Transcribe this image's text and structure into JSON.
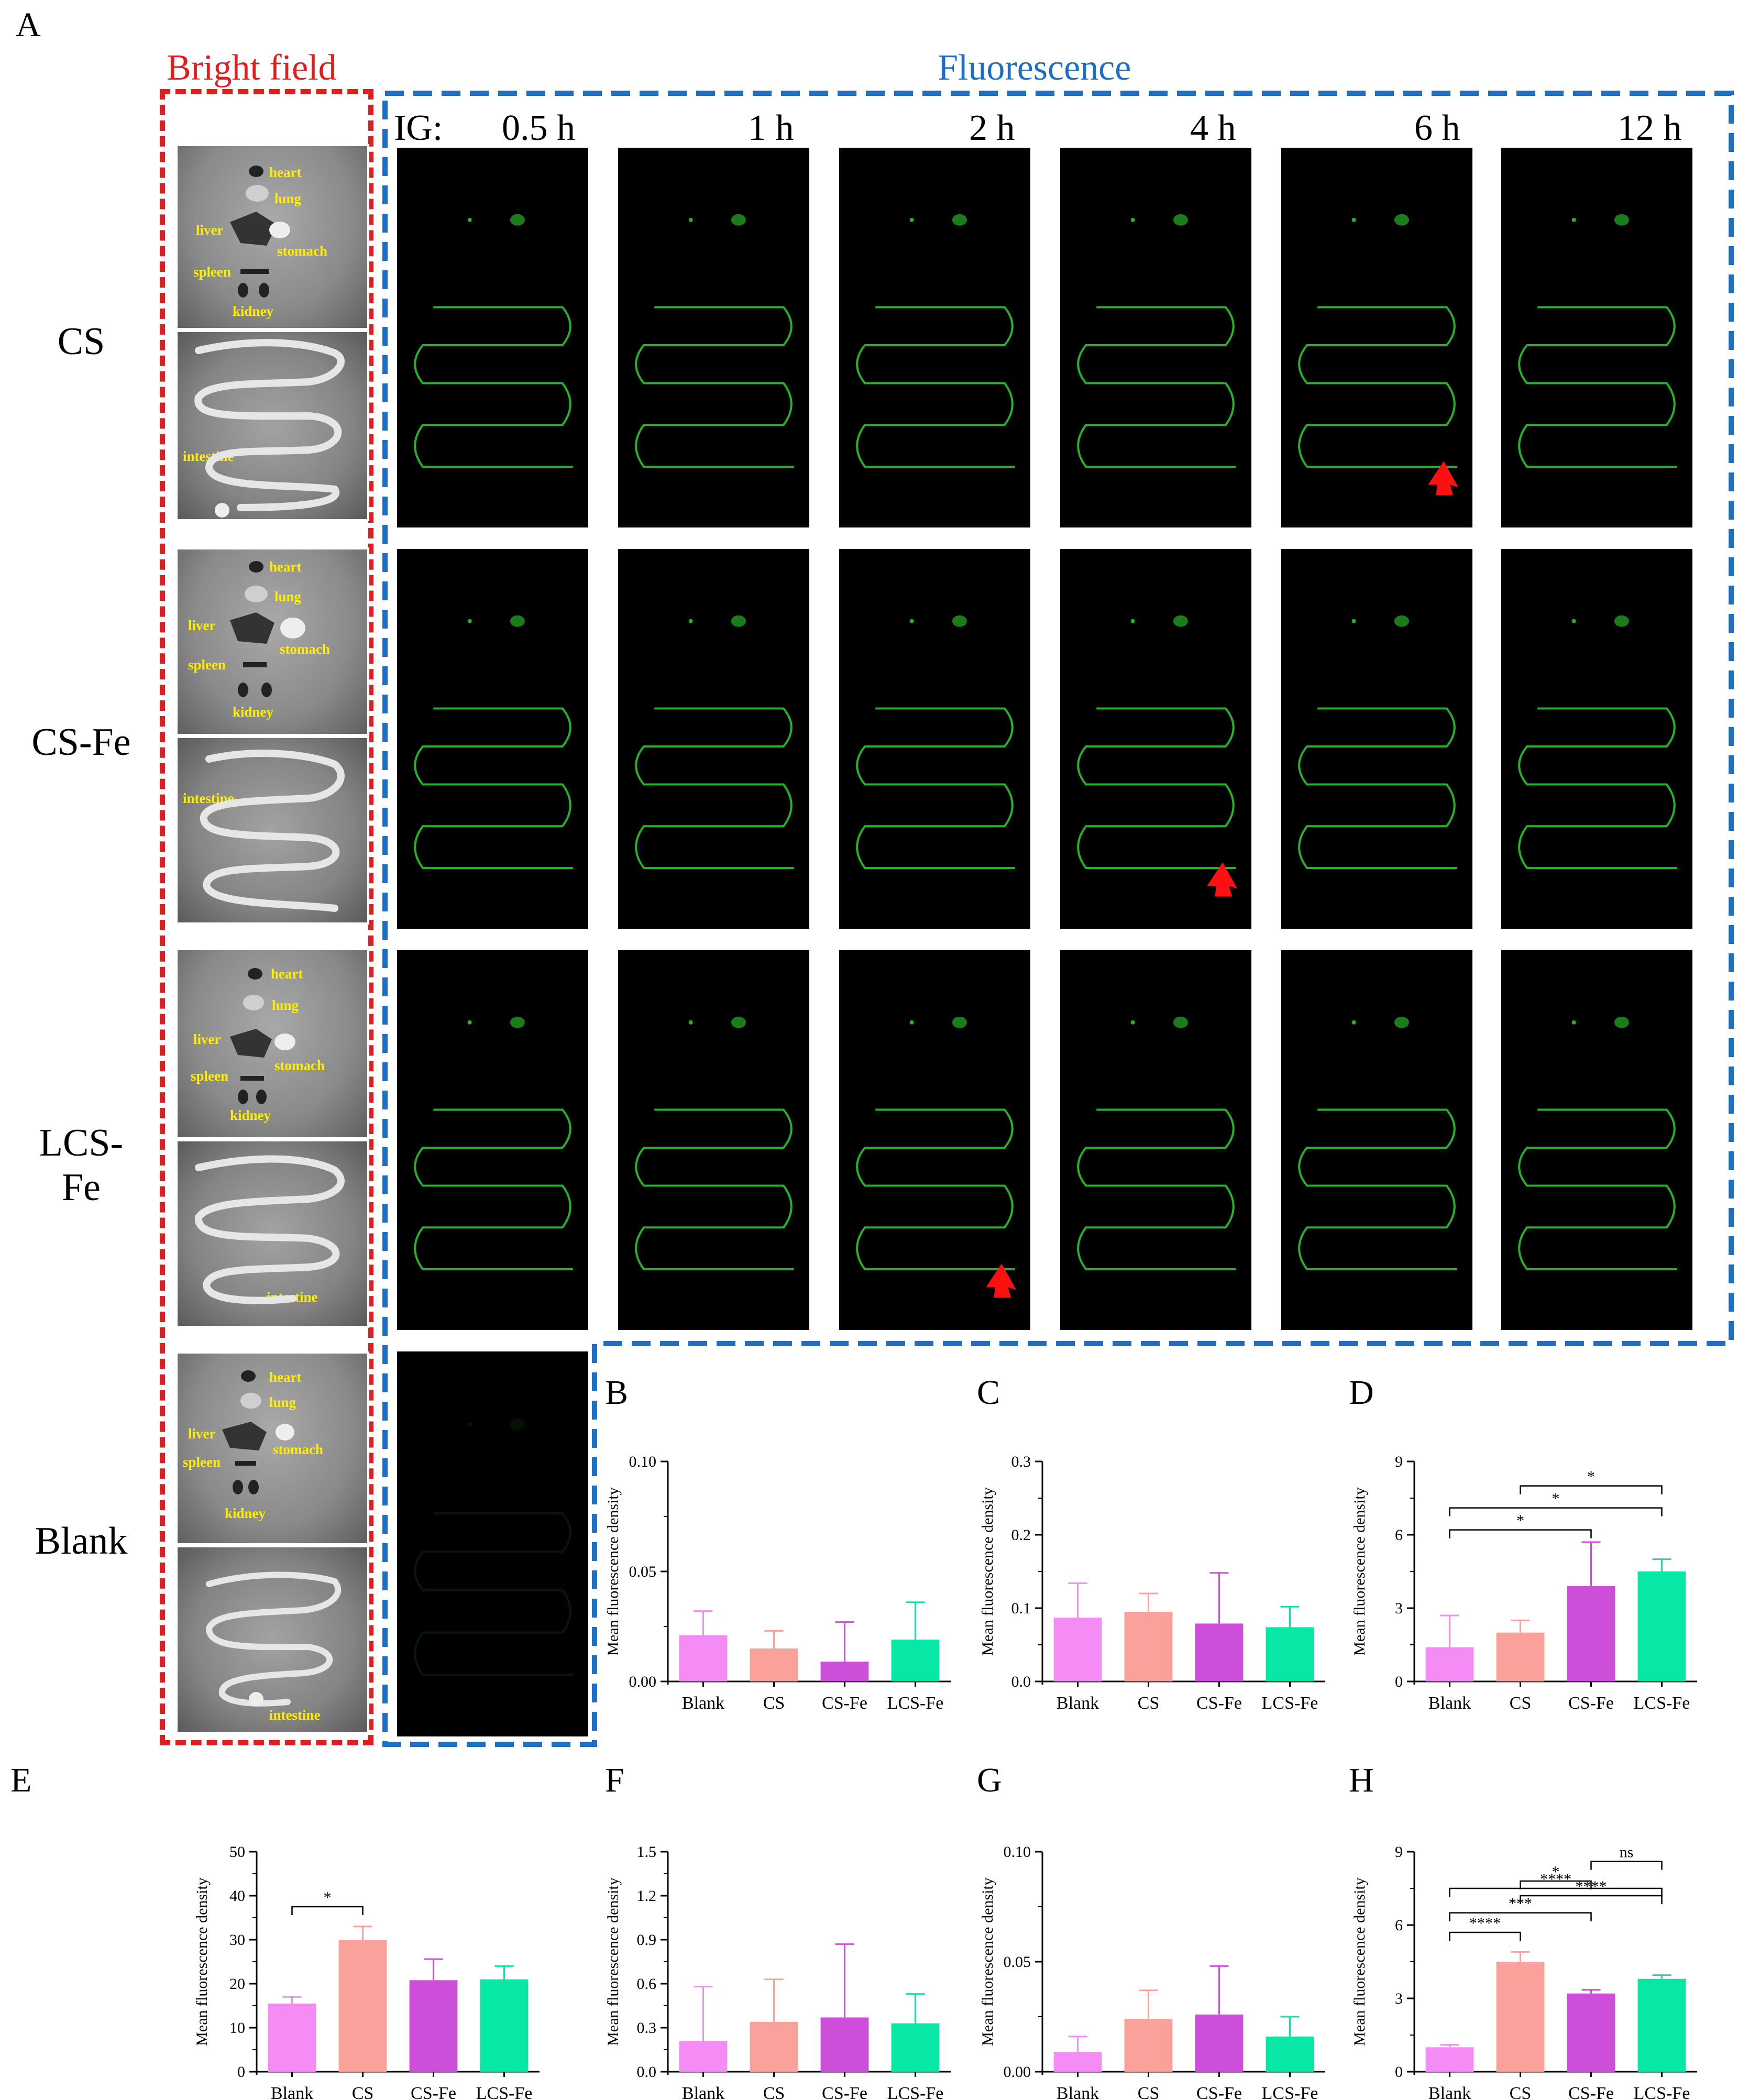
{
  "figure": {
    "panel_a_letter": "A",
    "bright_field_title": "Bright field",
    "fluorescence_title": "Fluorescence",
    "time_prefix": "IG:",
    "time_labels": [
      "0.5 h",
      "1 h",
      "2 h",
      "4 h",
      "6 h",
      "12 h"
    ],
    "row_labels": [
      "CS",
      "CS-Fe",
      "LCS-Fe",
      "Blank"
    ],
    "organ_labels": {
      "heart": "heart",
      "lung": "lung",
      "liver": "liver",
      "stomach": "stomach",
      "spleen": "spleen",
      "kidney": "kidney",
      "intestine": "intestine"
    },
    "colors": {
      "bright_field_box": "#e21d1d",
      "fluorescence_box": "#1d6fc4",
      "fluorescence_signal": "#2bd12b",
      "arrow": "#ff1010"
    },
    "arrows": [
      {
        "row": "CS",
        "time": "6 h"
      },
      {
        "row": "CS-Fe",
        "time": "4 h"
      },
      {
        "row": "LCS-Fe",
        "time": "2 h"
      }
    ]
  },
  "chart_data": [
    {
      "panel": "B",
      "type": "bar",
      "ylabel": "Mean fluorescence density",
      "categories": [
        "Blank",
        "CS",
        "CS-Fe",
        "LCS-Fe"
      ],
      "values": [
        0.021,
        0.015,
        0.009,
        0.019
      ],
      "errors": [
        0.011,
        0.008,
        0.018,
        0.017
      ],
      "ylim": [
        0,
        0.1
      ],
      "yticks": [
        "0.00",
        "0.05",
        "0.10"
      ],
      "ytickvals": [
        0,
        0.05,
        0.1
      ],
      "sig": []
    },
    {
      "panel": "C",
      "type": "bar",
      "ylabel": "Mean fluorescence density",
      "categories": [
        "Blank",
        "CS",
        "CS-Fe",
        "LCS-Fe"
      ],
      "values": [
        0.087,
        0.095,
        0.079,
        0.074
      ],
      "errors": [
        0.047,
        0.025,
        0.069,
        0.028
      ],
      "ylim": [
        0,
        0.3
      ],
      "yticks": [
        "0.0",
        "0.1",
        "0.2",
        "0.3"
      ],
      "ytickvals": [
        0,
        0.1,
        0.2,
        0.3
      ],
      "sig": []
    },
    {
      "panel": "D",
      "type": "bar",
      "ylabel": "Mean fluorescence density",
      "categories": [
        "Blank",
        "CS",
        "CS-Fe",
        "LCS-Fe"
      ],
      "values": [
        1.4,
        2.0,
        3.9,
        4.5
      ],
      "errors": [
        1.3,
        0.5,
        1.8,
        0.5
      ],
      "ylim": [
        0,
        9
      ],
      "yticks": [
        "0",
        "3",
        "6",
        "9"
      ],
      "ytickvals": [
        0,
        3,
        6,
        9
      ],
      "sig": [
        {
          "a": 1,
          "b": 3,
          "label": "*",
          "level": 8.0
        },
        {
          "a": 0,
          "b": 3,
          "label": "*",
          "level": 7.1
        },
        {
          "a": 0,
          "b": 2,
          "label": "*",
          "level": 6.2
        }
      ]
    },
    {
      "panel": "E",
      "type": "bar",
      "ylabel": "Mean fluorescence density",
      "categories": [
        "Blank",
        "CS",
        "CS-Fe",
        "LCS-Fe"
      ],
      "values": [
        15.5,
        30.0,
        20.8,
        21.0
      ],
      "errors": [
        1.5,
        3.0,
        4.8,
        3.0
      ],
      "ylim": [
        0,
        50
      ],
      "yticks": [
        "0",
        "10",
        "20",
        "30",
        "40",
        "50"
      ],
      "ytickvals": [
        0,
        10,
        20,
        30,
        40,
        50
      ],
      "sig": [
        {
          "a": 0,
          "b": 1,
          "label": "*",
          "level": 37.5
        }
      ]
    },
    {
      "panel": "F",
      "type": "bar",
      "ylabel": "Mean fluorescence density",
      "categories": [
        "Blank",
        "CS",
        "CS-Fe",
        "LCS-Fe"
      ],
      "values": [
        0.21,
        0.34,
        0.37,
        0.33
      ],
      "errors": [
        0.37,
        0.29,
        0.5,
        0.2
      ],
      "ylim": [
        0,
        1.5
      ],
      "yticks": [
        "0.0",
        "0.3",
        "0.6",
        "0.9",
        "1.2",
        "1.5"
      ],
      "ytickvals": [
        0,
        0.3,
        0.6,
        0.9,
        1.2,
        1.5
      ],
      "sig": []
    },
    {
      "panel": "G",
      "type": "bar",
      "ylabel": "Mean fluorescence density",
      "categories": [
        "Blank",
        "CS",
        "CS-Fe",
        "LCS-Fe"
      ],
      "values": [
        0.009,
        0.024,
        0.026,
        0.016
      ],
      "errors": [
        0.007,
        0.013,
        0.022,
        0.009
      ],
      "ylim": [
        0,
        0.1
      ],
      "yticks": [
        "0.00",
        "0.05",
        "0.10"
      ],
      "ytickvals": [
        0,
        0.05,
        0.1
      ],
      "sig": []
    },
    {
      "panel": "H",
      "type": "bar",
      "ylabel": "Mean fluorescence density",
      "categories": [
        "Blank",
        "CS",
        "CS-Fe",
        "LCS-Fe"
      ],
      "values": [
        1.0,
        4.5,
        3.2,
        3.8
      ],
      "errors": [
        0.1,
        0.4,
        0.15,
        0.15
      ],
      "ylim": [
        0,
        9
      ],
      "yticks": [
        "0",
        "3",
        "6",
        "9"
      ],
      "ytickvals": [
        0,
        3,
        6,
        9
      ],
      "sig": [
        {
          "a": 2,
          "b": 3,
          "label": "ns",
          "level": 8.6
        },
        {
          "a": 1,
          "b": 2,
          "label": "*",
          "level": 7.8
        },
        {
          "a": 1,
          "b": 3,
          "label": "****",
          "level": 7.2
        },
        {
          "a": 0,
          "b": 2,
          "label": "***",
          "level": 6.5
        },
        {
          "a": 0,
          "b": 3,
          "label": "****",
          "level": 7.5
        },
        {
          "a": 0,
          "b": 1,
          "label": "****",
          "level": 5.7
        }
      ]
    }
  ],
  "bar_colors": [
    "#f58cf5",
    "#f9a19a",
    "#cd4fd9",
    "#06e8a4"
  ]
}
